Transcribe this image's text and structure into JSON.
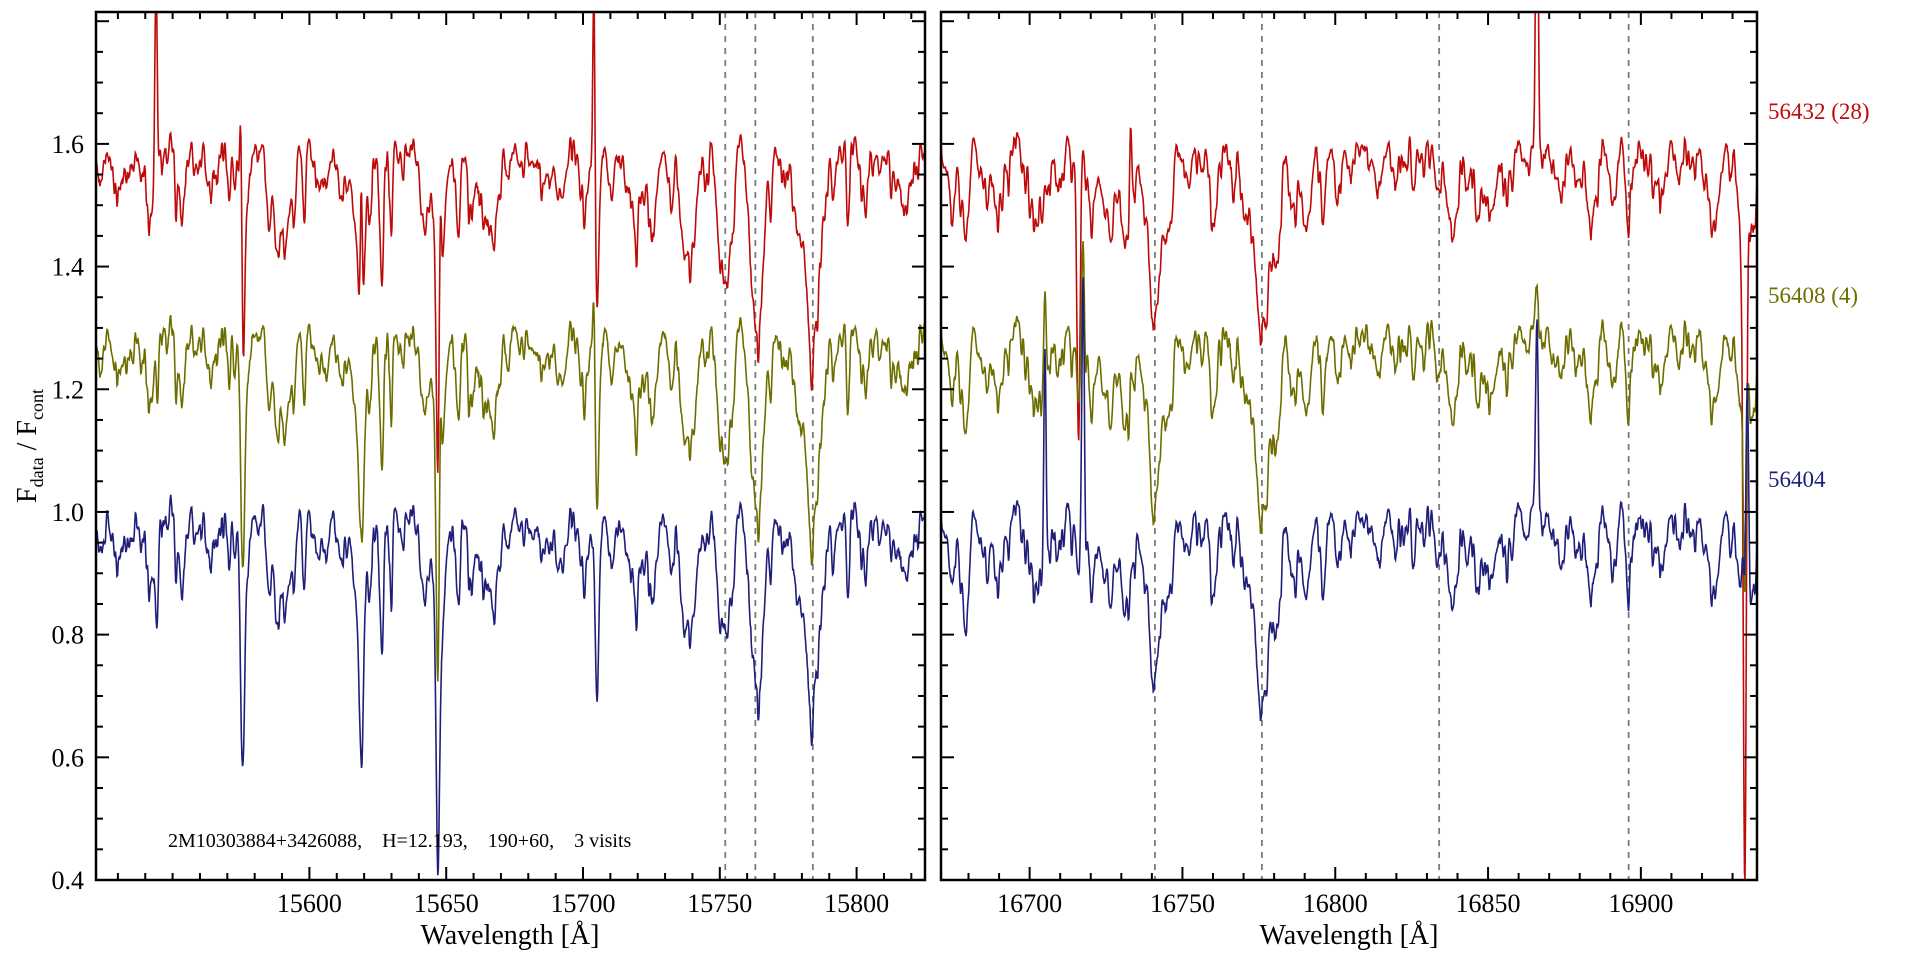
{
  "colors": {
    "axis": "#000000",
    "dashed": "#7a7a7a",
    "background": "#ffffff"
  },
  "chart_data": {
    "type": "line",
    "title": "",
    "ylabel": {
      "f": "F",
      "sub1": "data",
      "sep": " / F",
      "sub2": "cont"
    },
    "ylim": [
      0.4,
      1.815
    ],
    "yticks": [
      0.4,
      0.6,
      0.8,
      1.0,
      1.2,
      1.4,
      1.6
    ],
    "y_minor_step": 0.05,
    "legend_position": "right-margin",
    "grid": false,
    "annotation": "2M10303884+3426088,    H=12.193,    190+60,    3 visits",
    "series": [
      {
        "name": "56432 (28)",
        "color": "#bf0a0a",
        "offset": 1.6
      },
      {
        "name": "56408 (4)",
        "color": "#6e6e00",
        "offset": 1.3
      },
      {
        "name": "56404",
        "color": "#1f1f7a",
        "offset": 1.0
      }
    ],
    "noise": {
      "shared_amp": 0.04,
      "individual_amp": 0.015,
      "seed": 42
    },
    "panels": [
      {
        "xlabel": "Wavelength [Å]",
        "xlim": [
          15522,
          15825
        ],
        "xticks": [
          15600,
          15650,
          15700,
          15750,
          15800
        ],
        "x_minor_step": 10,
        "dashed_lines": [
          15752,
          15763,
          15784
        ],
        "features": [
          {
            "x": 15544,
            "depth": 0.1,
            "width": 0.6,
            "mult": [
              0.3,
              0.6,
              1.0
            ]
          },
          {
            "x": 15575.5,
            "depth": 0.37,
            "width": 0.75,
            "mult": [
              0.95,
              1.0,
              1.0
            ]
          },
          {
            "x": 15588,
            "depth": 0.12,
            "width": 1.2,
            "mult": [
              1,
              1,
              1
            ]
          },
          {
            "x": 15619,
            "depth": 0.35,
            "width": 0.75,
            "mult": [
              0.95,
              1.0,
              1.0
            ]
          },
          {
            "x": 15626,
            "depth": 0.1,
            "width": 1.0,
            "mult": [
              1,
              1,
              1
            ]
          },
          {
            "x": 15647,
            "depth": 0.42,
            "width": 0.7,
            "mult": [
              0.9,
              1.0,
              1.0
            ]
          },
          {
            "x": 15665,
            "depth": 0.1,
            "width": 1.3,
            "mult": [
              1,
              1,
              1
            ]
          },
          {
            "x": 15705,
            "depth": 0.27,
            "width": 0.8,
            "mult": [
              0.85,
              0.95,
              1.0
            ]
          },
          {
            "x": 15718,
            "depth": 0.09,
            "width": 1.4,
            "mult": [
              1,
              1,
              1
            ]
          },
          {
            "x": 15739,
            "depth": 0.1,
            "width": 1.4,
            "mult": [
              1,
              1,
              1
            ]
          },
          {
            "x": 15752,
            "depth": 0.19,
            "width": 1.7,
            "mult": [
              1.15,
              1.1,
              1.0
            ]
          },
          {
            "x": 15763,
            "depth": 0.24,
            "width": 1.7,
            "mult": [
              1.1,
              1.05,
              1.0
            ]
          },
          {
            "x": 15784,
            "depth": 0.28,
            "width": 2.2,
            "mult": [
              1.1,
              1.05,
              1.0
            ]
          }
        ],
        "spikes": [
          {
            "x": 15544,
            "amp": 0.3,
            "width": 0.45,
            "mult": [
              1.4,
              0.35,
              0.12
            ]
          },
          {
            "x": 15575,
            "amp": 0.28,
            "width": 0.4,
            "mult": [
              1.2,
              0.3,
              0.1
            ]
          },
          {
            "x": 15619,
            "amp": 0.3,
            "width": 0.4,
            "mult": [
              1.2,
              0.35,
              0.1
            ]
          },
          {
            "x": 15647.8,
            "amp": 0.26,
            "width": 0.4,
            "mult": [
              0.9,
              0.8,
              0.1
            ]
          },
          {
            "x": 15704,
            "amp": 0.3,
            "width": 0.4,
            "mult": [
              1.2,
              0.55,
              0.15
            ]
          }
        ]
      },
      {
        "xlabel": "Wavelength [Å]",
        "xlim": [
          16671,
          16938
        ],
        "xticks": [
          16700,
          16750,
          16800,
          16850,
          16900
        ],
        "x_minor_step": 10,
        "dashed_lines": [
          16741,
          16776,
          16834,
          16896
        ],
        "features": [
          {
            "x": 16679,
            "depth": 0.14,
            "width": 1.2,
            "mult": [
              0.8,
              0.9,
              1.1
            ]
          },
          {
            "x": 16690,
            "depth": 0.1,
            "width": 1.1,
            "mult": [
              1,
              1,
              1
            ]
          },
          {
            "x": 16705,
            "depth": 0.12,
            "width": 0.9,
            "mult": [
              1,
              1,
              1
            ]
          },
          {
            "x": 16716,
            "depth": 0.3,
            "width": 0.5,
            "mult": [
              1.6,
              0.4,
              0.3
            ]
          },
          {
            "x": 16741,
            "depth": 0.21,
            "width": 1.9,
            "mult": [
              1.05,
              1.05,
              1.0
            ]
          },
          {
            "x": 16776,
            "depth": 0.28,
            "width": 2.1,
            "mult": [
              1.0,
              1.0,
              1.0
            ]
          },
          {
            "x": 16790,
            "depth": 0.08,
            "width": 1.3,
            "mult": [
              1,
              1,
              1
            ]
          },
          {
            "x": 16834,
            "depth": 0.05,
            "width": 1.2,
            "mult": [
              1,
              1,
              1
            ]
          },
          {
            "x": 16852,
            "depth": 0.07,
            "width": 1.2,
            "mult": [
              1,
              1,
              1
            ]
          },
          {
            "x": 16896,
            "depth": 0.05,
            "width": 1.2,
            "mult": [
              1,
              1,
              1
            ]
          },
          {
            "x": 16934,
            "depth": 0.9,
            "width": 0.55,
            "mult": [
              1.3,
              0.45,
              0.1
            ]
          }
        ],
        "spikes": [
          {
            "x": 16705,
            "amp": 0.4,
            "width": 0.4,
            "mult": [
              0.2,
              0.5,
              1.0
            ]
          },
          {
            "x": 16717.5,
            "amp": 0.45,
            "width": 0.38,
            "mult": [
              0.15,
              0.45,
              1.0
            ]
          },
          {
            "x": 16733,
            "amp": 0.15,
            "width": 0.4,
            "mult": [
              1.0,
              0.3,
              0.2
            ]
          },
          {
            "x": 16866,
            "amp": 0.34,
            "width": 0.42,
            "mult": [
              1.6,
              0.25,
              0.95
            ]
          },
          {
            "x": 16934.8,
            "amp": 0.3,
            "width": 0.4,
            "mult": [
              0.1,
              0.2,
              1.0
            ]
          }
        ]
      }
    ]
  }
}
